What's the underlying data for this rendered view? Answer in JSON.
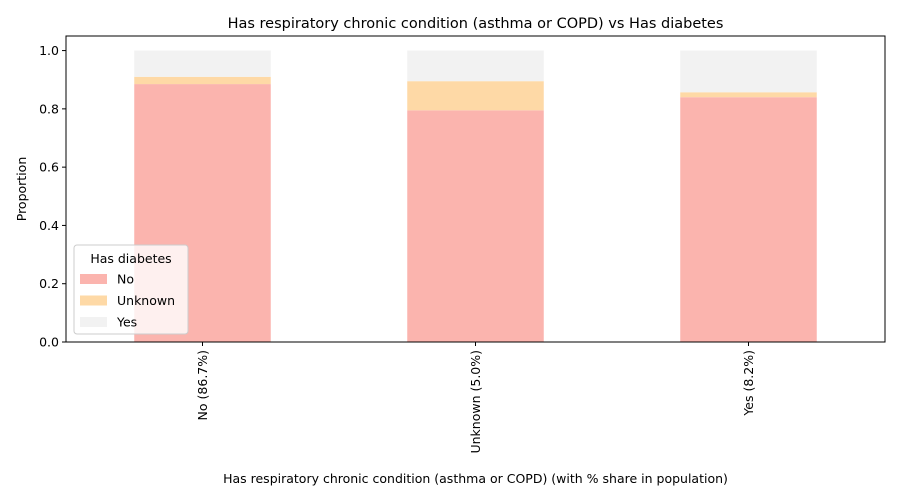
{
  "chart_data": {
    "type": "bar",
    "stacked": true,
    "title": "Has respiratory chronic condition (asthma or COPD) vs Has diabetes",
    "xlabel": "Has respiratory chronic condition (asthma or COPD) (with % share in population)",
    "ylabel": "Proportion",
    "categories": [
      "No (86.7%)",
      "Unknown (5.0%)",
      "Yes (8.2%)"
    ],
    "series": [
      {
        "name": "No",
        "color": "#fbb4ae",
        "values": [
          0.885,
          0.795,
          0.84
        ]
      },
      {
        "name": "Unknown",
        "color": "#fed9a6",
        "values": [
          0.025,
          0.1,
          0.017
        ]
      },
      {
        "name": "Yes",
        "color": "#f2f2f2",
        "values": [
          0.09,
          0.105,
          0.143
        ]
      }
    ],
    "ylim": [
      0,
      1.05
    ],
    "yticks": [
      0.0,
      0.2,
      0.4,
      0.6,
      0.8,
      1.0
    ],
    "ytick_labels": [
      "0.0",
      "0.2",
      "0.4",
      "0.6",
      "0.8",
      "1.0"
    ],
    "legend": {
      "title": "Has diabetes",
      "placement": "lower-left"
    },
    "grid": false
  }
}
